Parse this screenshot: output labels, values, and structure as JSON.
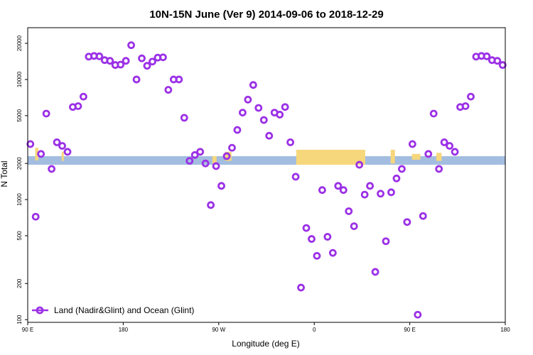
{
  "chart_data": {
    "type": "scatter",
    "title": "10N-15N June (Ver 9)   2014-09-06 to 2018-12-29",
    "xlabel": "Longitude (deg E)",
    "ylabel": "N Total",
    "x_tick_labels": [
      "90 E",
      "180",
      "90 W",
      "0",
      "90 E",
      "180"
    ],
    "y_tick_labels": [
      "100",
      "200",
      "500",
      "1000",
      "2000",
      "5000",
      "10000",
      "20000"
    ],
    "x_tick_values": [
      90,
      180,
      270,
      360,
      450,
      540
    ],
    "y_tick_values": [
      100,
      200,
      500,
      1000,
      2000,
      5000,
      10000,
      20000
    ],
    "xlim": [
      90,
      540
    ],
    "ylim": [
      95,
      27000
    ],
    "y_scale": "log",
    "legend": {
      "position": "bottom-left",
      "label": "Land (Nadir&Glint) and Ocean (Glint)"
    },
    "colors": {
      "points": "#9b30e6",
      "ocean": "#a3bde0",
      "land": "#f6d77b"
    },
    "series": [
      {
        "name": "Land (Nadir&Glint) and Ocean (Glint)",
        "x": [
          92.5,
          97.5,
          102.5,
          107.5,
          112.5,
          117.5,
          122.5,
          127.5,
          132.5,
          137.5,
          142.5,
          147.5,
          152.5,
          157.5,
          162.5,
          167.5,
          172.5,
          177.5,
          182.5,
          187.5,
          192.5,
          197.5,
          202.5,
          207.5,
          212.5,
          217.5,
          222.5,
          227.5,
          232.5,
          237.5,
          242.5,
          247.5,
          252.5,
          257.5,
          262.5,
          267.5,
          272.5,
          277.5,
          282.5,
          287.5,
          292.5,
          297.5,
          302.5,
          307.5,
          312.5,
          317.5,
          322.5,
          327.5,
          332.5,
          337.5,
          342.5,
          347.5,
          352.5,
          357.5,
          362.5,
          367.5,
          372.5,
          377.5,
          382.5,
          387.5,
          392.5,
          397.5,
          402.5,
          407.5,
          412.5,
          417.5,
          422.5,
          427.5,
          432.5,
          437.5,
          442.5,
          447.5,
          452.5,
          457.5,
          462.5,
          467.5,
          472.5,
          477.5,
          482.5,
          487.5,
          492.5,
          497.5,
          502.5,
          507.5,
          512.5,
          517.5,
          522.5,
          527.5,
          532.5,
          537.5
        ],
        "y": [
          2900,
          720,
          2400,
          5200,
          1800,
          3000,
          2800,
          2500,
          5900,
          6000,
          7200,
          15500,
          15700,
          15600,
          14500,
          14300,
          13200,
          13300,
          14300,
          19300,
          10000,
          15000,
          13000,
          14100,
          15200,
          15300,
          8200,
          10000,
          10000,
          4800,
          2100,
          2350,
          2500,
          2000,
          900,
          1900,
          1300,
          2300,
          2700,
          3800,
          5300,
          6800,
          9000,
          5800,
          4600,
          3400,
          5300,
          5100,
          5900,
          3000,
          1550,
          185,
          580,
          470,
          340,
          1200,
          490,
          360,
          1300,
          1200,
          800,
          600,
          1950,
          1100,
          1300,
          250,
          1120,
          450,
          1150,
          1500,
          1800,
          650,
          2900,
          110,
          730,
          2400,
          5200,
          1800,
          3000,
          2800,
          2500,
          5900,
          6000,
          7200,
          15500,
          15700,
          15600,
          14500,
          14300,
          13200
        ]
      }
    ],
    "land_segments": [
      {
        "x": [
          97,
          100
        ],
        "y_low": 2120,
        "y_high": 2700
      },
      {
        "x": [
          122,
          124
        ],
        "y_low": 2100,
        "y_high": 2500
      },
      {
        "x": [
          264,
          268
        ],
        "y_low": 2000,
        "y_high": 2300
      },
      {
        "x": [
          276,
          282
        ],
        "y_low": 2100,
        "y_high": 2500
      },
      {
        "x": [
          343,
          408
        ],
        "y_low": 1950,
        "y_high": 2600
      },
      {
        "x": [
          432,
          436
        ],
        "y_low": 2000,
        "y_high": 2600
      },
      {
        "x": [
          452,
          460
        ],
        "y_low": 2150,
        "y_high": 2400
      },
      {
        "x": [
          475,
          480
        ],
        "y_low": 2100,
        "y_high": 2450
      }
    ]
  }
}
